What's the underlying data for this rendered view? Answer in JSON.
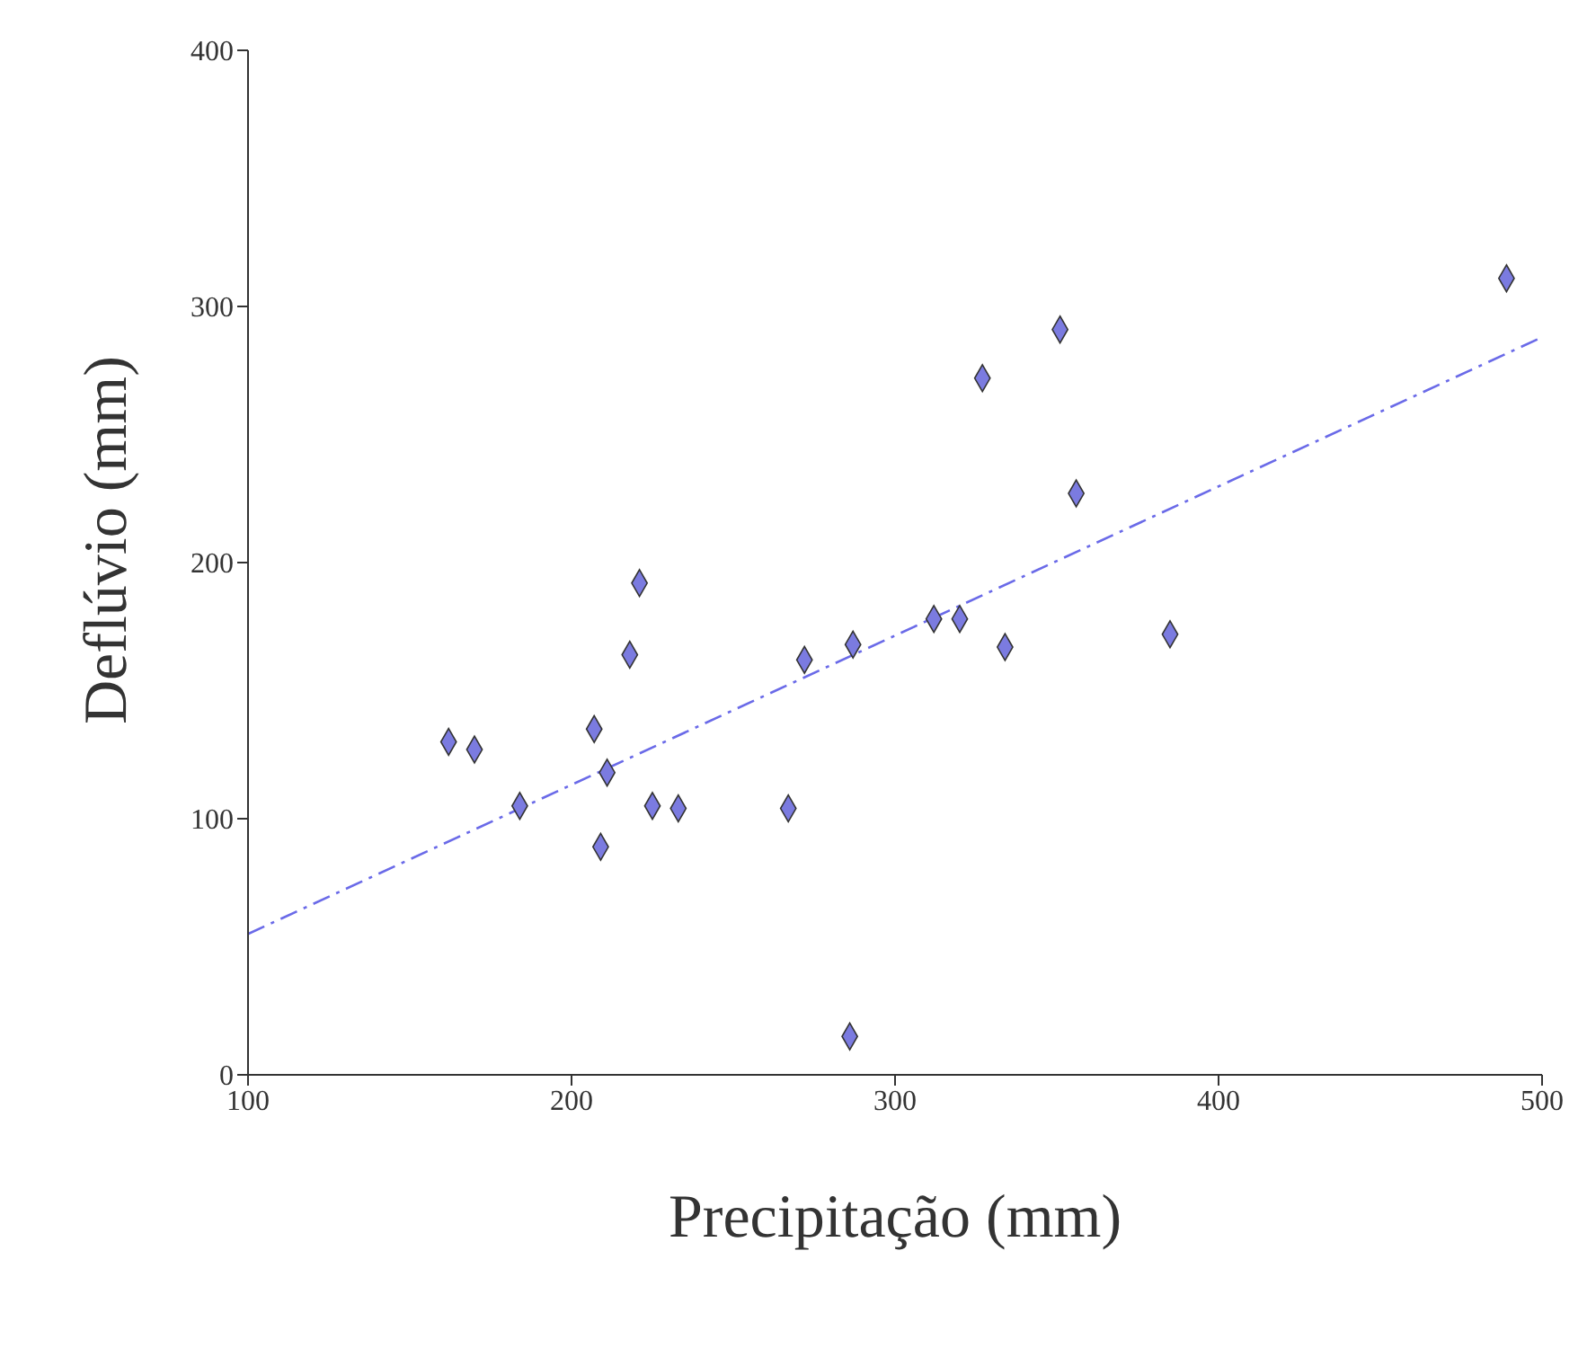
{
  "chart_data": {
    "type": "scatter",
    "xlabel": "Precipitação (mm)",
    "ylabel": "Deflúvio (mm)",
    "xlim": [
      100,
      500
    ],
    "xticks": [
      100,
      200,
      300,
      400,
      500
    ],
    "ylim": [
      0,
      400
    ],
    "yticks": [
      0,
      100,
      200,
      300,
      400
    ],
    "marker": "diamond",
    "series": [
      {
        "color": "#7b7be0",
        "x": [
          162,
          170,
          184,
          207,
          211,
          209,
          218,
          221,
          225,
          233,
          267,
          272,
          287,
          286,
          312,
          320,
          327,
          334,
          351,
          356,
          385,
          489
        ],
        "values": [
          130,
          127,
          105,
          135,
          118,
          89,
          164,
          192,
          105,
          104,
          104,
          162,
          168,
          15,
          178,
          178,
          272,
          167,
          291,
          227,
          172,
          311
        ]
      },
      {
        "type": "line",
        "color": "#6a6ae8",
        "line_style": "dashed",
        "marker": "none",
        "x": [
          100,
          500
        ],
        "values": [
          55,
          288
        ]
      }
    ]
  }
}
